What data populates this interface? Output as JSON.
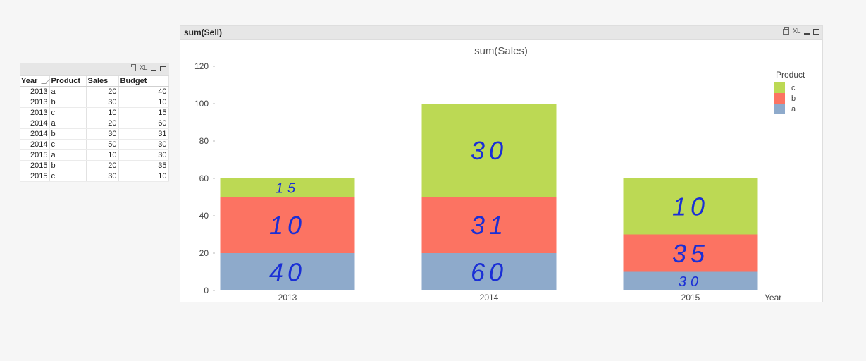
{
  "table_box": {
    "icons": [
      "print-icon",
      "xl-icon",
      "minimize-icon",
      "maximize-icon"
    ],
    "xl_label": "XL",
    "columns": [
      "Year",
      "Product",
      "Sales",
      "Budget"
    ],
    "rows": [
      [
        "2013",
        "a",
        "20",
        "40"
      ],
      [
        "2013",
        "b",
        "30",
        "10"
      ],
      [
        "2013",
        "c",
        "10",
        "15"
      ],
      [
        "2014",
        "a",
        "20",
        "60"
      ],
      [
        "2014",
        "b",
        "30",
        "31"
      ],
      [
        "2014",
        "c",
        "50",
        "30"
      ],
      [
        "2015",
        "a",
        "10",
        "30"
      ],
      [
        "2015",
        "b",
        "20",
        "35"
      ],
      [
        "2015",
        "c",
        "30",
        "10"
      ]
    ]
  },
  "chart_box": {
    "caption": "sum(Sell)",
    "xl_label": "XL"
  },
  "chart_data": {
    "type": "bar",
    "stacked": true,
    "title": "sum(Sales)",
    "xlabel": "Year",
    "ylabel": "",
    "categories": [
      "2013",
      "2014",
      "2015"
    ],
    "series": [
      {
        "name": "a",
        "values": [
          20,
          20,
          10
        ],
        "color": "#8eaacb"
      },
      {
        "name": "b",
        "values": [
          30,
          30,
          20
        ],
        "color": "#fc7362"
      },
      {
        "name": "c",
        "values": [
          10,
          50,
          30
        ],
        "color": "#bcd954"
      }
    ],
    "ylim": [
      0,
      120
    ],
    "yticks": [
      0,
      20,
      40,
      60,
      80,
      100,
      120
    ],
    "legend": {
      "title": "Product",
      "placement": "top-right",
      "order": [
        "c",
        "b",
        "a"
      ]
    },
    "annotations": {
      "handwritten_color": "#1a2fd6",
      "labels": [
        {
          "category": "2013",
          "series": "c",
          "text": "15"
        },
        {
          "category": "2013",
          "series": "b",
          "text": "10"
        },
        {
          "category": "2013",
          "series": "a",
          "text": "40"
        },
        {
          "category": "2014",
          "series": "c",
          "text": "30"
        },
        {
          "category": "2014",
          "series": "b",
          "text": "31"
        },
        {
          "category": "2014",
          "series": "a",
          "text": "60"
        },
        {
          "category": "2015",
          "series": "c",
          "text": "10"
        },
        {
          "category": "2015",
          "series": "b",
          "text": "35"
        },
        {
          "category": "2015",
          "series": "a",
          "text": "30"
        }
      ]
    }
  }
}
